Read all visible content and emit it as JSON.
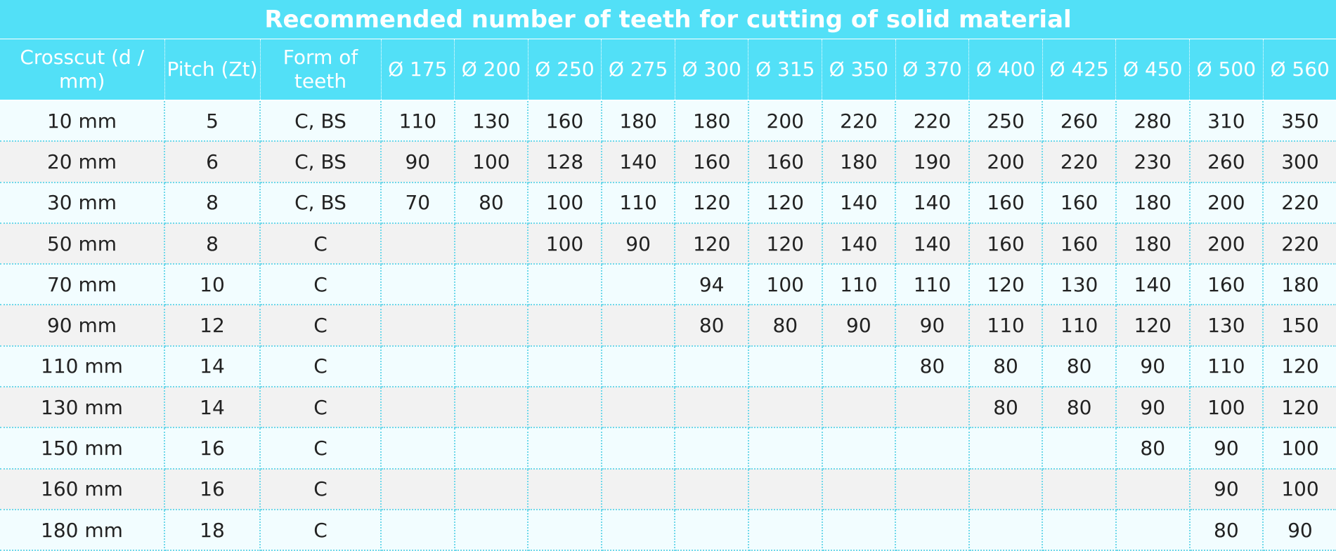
{
  "title": "Recommended number of teeth for cutting of solid material",
  "columns": [
    "Crosscut (d / mm)",
    "Pitch (Zt)",
    "Form of teeth",
    "Ø 175",
    "Ø 200",
    "Ø 250",
    "Ø 275",
    "Ø 300",
    "Ø 315",
    "Ø 350",
    "Ø 370",
    "Ø 400",
    "Ø 425",
    "Ø 450",
    "Ø 500",
    "Ø 560"
  ],
  "rows": [
    [
      "10 mm",
      "5",
      "C, BS",
      "110",
      "130",
      "160",
      "180",
      "180",
      "200",
      "220",
      "220",
      "250",
      "260",
      "280",
      "310",
      "350"
    ],
    [
      "20 mm",
      "6",
      "C, BS",
      "90",
      "100",
      "128",
      "140",
      "160",
      "160",
      "180",
      "190",
      "200",
      "220",
      "230",
      "260",
      "300"
    ],
    [
      "30 mm",
      "8",
      "C, BS",
      "70",
      "80",
      "100",
      "110",
      "120",
      "120",
      "140",
      "140",
      "160",
      "160",
      "180",
      "200",
      "220"
    ],
    [
      "50 mm",
      "8",
      "C",
      "",
      "",
      "100",
      "90",
      "120",
      "120",
      "140",
      "140",
      "160",
      "160",
      "180",
      "200",
      "220"
    ],
    [
      "70 mm",
      "10",
      "C",
      "",
      "",
      "",
      "",
      "94",
      "100",
      "110",
      "110",
      "120",
      "130",
      "140",
      "160",
      "180"
    ],
    [
      "90 mm",
      "12",
      "C",
      "",
      "",
      "",
      "",
      "80",
      "80",
      "90",
      "90",
      "110",
      "110",
      "120",
      "130",
      "150"
    ],
    [
      "110 mm",
      "14",
      "C",
      "",
      "",
      "",
      "",
      "",
      "",
      "",
      "80",
      "80",
      "80",
      "90",
      "110",
      "120"
    ],
    [
      "130 mm",
      "14",
      "C",
      "",
      "",
      "",
      "",
      "",
      "",
      "",
      "",
      "80",
      "80",
      "90",
      "100",
      "120"
    ],
    [
      "150 mm",
      "16",
      "C",
      "",
      "",
      "",
      "",
      "",
      "",
      "",
      "",
      "",
      "",
      "80",
      "90",
      "100"
    ],
    [
      "160 mm",
      "16",
      "C",
      "",
      "",
      "",
      "",
      "",
      "",
      "",
      "",
      "",
      "",
      "",
      "90",
      "100"
    ],
    [
      "180 mm",
      "18",
      "C",
      "",
      "",
      "",
      "",
      "",
      "",
      "",
      "",
      "",
      "",
      "",
      "80",
      "90"
    ]
  ],
  "colors": {
    "header_bg": "#52e0f7",
    "header_text": "#ffffff",
    "row_light": "#f2fdff",
    "row_alt": "#f2f2f2",
    "grid_dots": "#6fd8ea"
  }
}
